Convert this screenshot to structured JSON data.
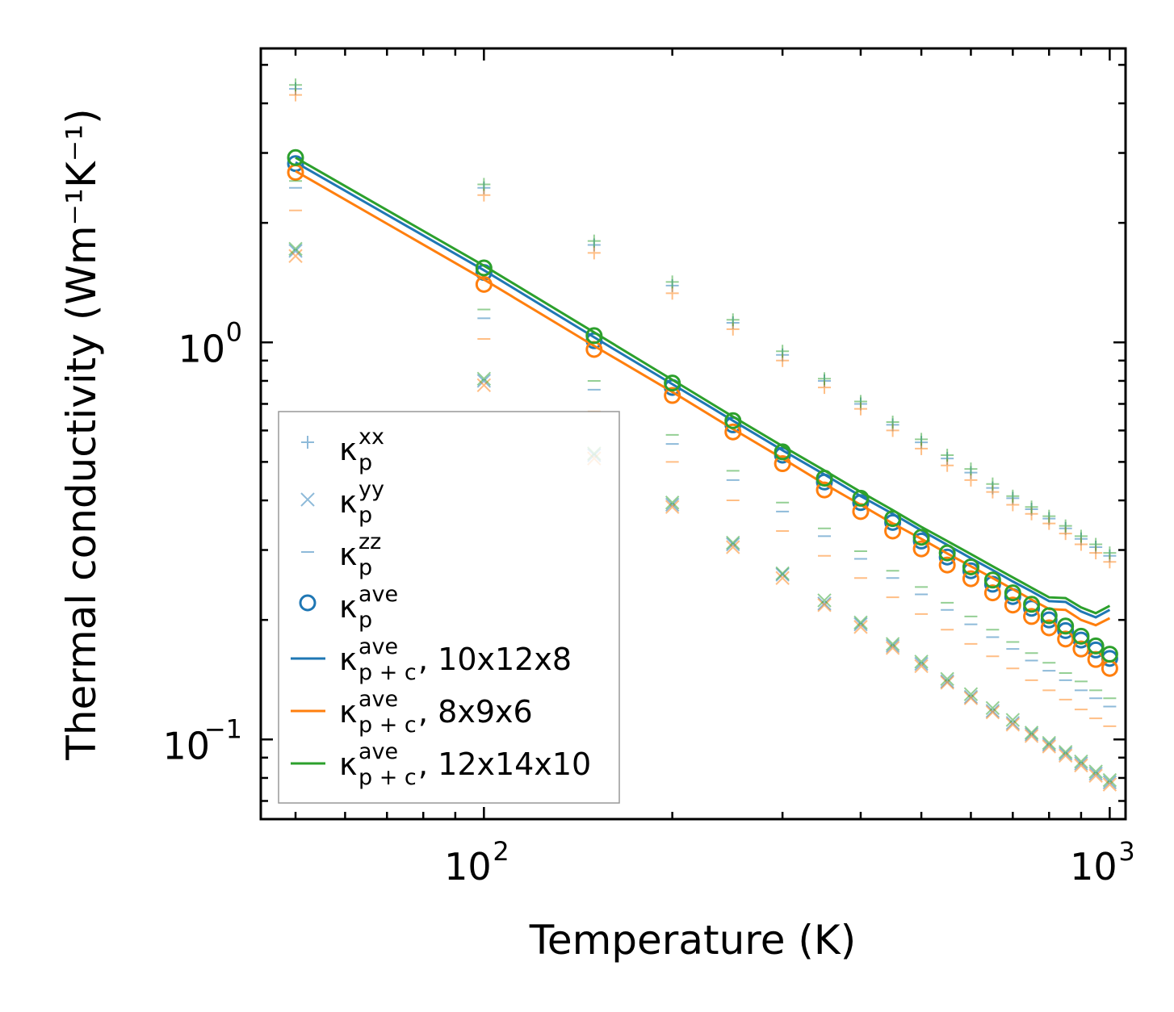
{
  "chart_data": {
    "type": "scatter",
    "xscale": "log",
    "yscale": "log",
    "xlim": [
      44,
      1060
    ],
    "ylim": [
      0.063,
      5.5
    ],
    "xlabel": "Temperature (K)",
    "ylabel": "Thermal conductivity (Wm⁻¹K⁻¹)",
    "x_ticks": [
      {
        "value": 100,
        "base": "10",
        "exp": "2"
      },
      {
        "value": 1000,
        "base": "10",
        "exp": "3"
      }
    ],
    "y_ticks": [
      {
        "value": 0.1,
        "base": "10",
        "exp": "−1"
      },
      {
        "value": 1,
        "base": "10",
        "exp": "0"
      }
    ],
    "colors": {
      "blue": "#1f77b4",
      "orange": "#ff7f0e",
      "green": "#2ca02c"
    },
    "temperatures": [
      50,
      100,
      150,
      200,
      250,
      300,
      350,
      400,
      450,
      500,
      550,
      600,
      650,
      700,
      750,
      800,
      850,
      900,
      950,
      1000
    ],
    "legend": {
      "position": "lower-left",
      "entries": [
        {
          "marker": "plus",
          "base": "κ",
          "sub": "p",
          "sup": "xx",
          "suffix": ""
        },
        {
          "marker": "x",
          "base": "κ",
          "sub": "p",
          "sup": "yy",
          "suffix": ""
        },
        {
          "marker": "dash",
          "base": "κ",
          "sub": "p",
          "sup": "zz",
          "suffix": ""
        },
        {
          "marker": "circle",
          "base": "κ",
          "sub": "p",
          "sup": "ave",
          "suffix": ""
        },
        {
          "marker": "line",
          "color": "blue",
          "base": "κ",
          "sub": "p + c",
          "sup": "ave",
          "suffix": ", 10x12x8"
        },
        {
          "marker": "line",
          "color": "orange",
          "base": "κ",
          "sub": "p + c",
          "sup": "ave",
          "suffix": ", 8x9x6"
        },
        {
          "marker": "line",
          "color": "green",
          "base": "κ",
          "sub": "p + c",
          "sup": "ave",
          "suffix": ", 12x14x10"
        }
      ]
    },
    "series": [
      {
        "name": "10x12x8",
        "color": "blue",
        "kxx": [
          4.35,
          2.45,
          1.76,
          1.39,
          1.12,
          0.93,
          0.8,
          0.7,
          0.62,
          0.56,
          0.51,
          0.47,
          0.43,
          0.405,
          0.38,
          0.36,
          0.34,
          0.32,
          0.305,
          0.29
        ],
        "kyy": [
          1.7,
          0.8,
          0.52,
          0.39,
          0.31,
          0.26,
          0.22,
          0.195,
          0.172,
          0.155,
          0.14,
          0.128,
          0.118,
          0.11,
          0.103,
          0.097,
          0.092,
          0.087,
          0.082,
          0.078
        ],
        "kzz": [
          2.45,
          1.15,
          0.76,
          0.555,
          0.45,
          0.375,
          0.325,
          0.285,
          0.255,
          0.232,
          0.212,
          0.195,
          0.181,
          0.169,
          0.158,
          0.149,
          0.141,
          0.133,
          0.127,
          0.121
        ],
        "kave": [
          2.82,
          1.5,
          1.01,
          0.77,
          0.62,
          0.52,
          0.445,
          0.395,
          0.352,
          0.316,
          0.288,
          0.266,
          0.246,
          0.229,
          0.214,
          0.2,
          0.188,
          0.178,
          0.168,
          0.16
        ],
        "kpc": [
          2.84,
          1.52,
          1.03,
          0.785,
          0.635,
          0.535,
          0.465,
          0.41,
          0.37,
          0.336,
          0.309,
          0.286,
          0.267,
          0.25,
          0.236,
          0.223,
          0.222,
          0.21,
          0.203,
          0.212
        ]
      },
      {
        "name": "8x9x6",
        "color": "orange",
        "kxx": [
          4.2,
          2.35,
          1.68,
          1.33,
          1.08,
          0.9,
          0.77,
          0.68,
          0.6,
          0.54,
          0.49,
          0.45,
          0.42,
          0.39,
          0.37,
          0.35,
          0.33,
          0.31,
          0.295,
          0.28
        ],
        "kyy": [
          1.65,
          0.78,
          0.51,
          0.385,
          0.305,
          0.255,
          0.218,
          0.192,
          0.17,
          0.153,
          0.139,
          0.127,
          0.117,
          0.109,
          0.102,
          0.096,
          0.091,
          0.086,
          0.081,
          0.077
        ],
        "kzz": [
          2.15,
          1.02,
          0.67,
          0.5,
          0.4,
          0.335,
          0.29,
          0.255,
          0.228,
          0.207,
          0.189,
          0.174,
          0.162,
          0.151,
          0.141,
          0.133,
          0.126,
          0.119,
          0.113,
          0.108
        ],
        "kave": [
          2.68,
          1.4,
          0.96,
          0.735,
          0.595,
          0.495,
          0.425,
          0.375,
          0.335,
          0.302,
          0.275,
          0.254,
          0.234,
          0.218,
          0.204,
          0.191,
          0.179,
          0.169,
          0.159,
          0.151
        ],
        "kpc": [
          2.7,
          1.44,
          0.98,
          0.75,
          0.605,
          0.51,
          0.44,
          0.39,
          0.35,
          0.32,
          0.294,
          0.273,
          0.255,
          0.239,
          0.225,
          0.213,
          0.212,
          0.2,
          0.194,
          0.202
        ]
      },
      {
        "name": "12x14x10",
        "color": "green",
        "kxx": [
          4.45,
          2.5,
          1.8,
          1.42,
          1.14,
          0.95,
          0.81,
          0.71,
          0.63,
          0.57,
          0.52,
          0.48,
          0.44,
          0.41,
          0.385,
          0.365,
          0.345,
          0.325,
          0.31,
          0.295
        ],
        "kyy": [
          1.72,
          0.81,
          0.525,
          0.395,
          0.313,
          0.262,
          0.224,
          0.197,
          0.174,
          0.157,
          0.142,
          0.13,
          0.12,
          0.112,
          0.104,
          0.098,
          0.093,
          0.088,
          0.083,
          0.079
        ],
        "kzz": [
          2.55,
          1.21,
          0.8,
          0.585,
          0.475,
          0.395,
          0.34,
          0.298,
          0.266,
          0.242,
          0.221,
          0.204,
          0.189,
          0.176,
          0.165,
          0.156,
          0.147,
          0.14,
          0.133,
          0.127
        ],
        "kave": [
          2.92,
          1.54,
          1.04,
          0.79,
          0.635,
          0.53,
          0.455,
          0.405,
          0.36,
          0.323,
          0.295,
          0.272,
          0.252,
          0.234,
          0.219,
          0.205,
          0.193,
          0.182,
          0.172,
          0.164
        ],
        "kpc": [
          2.92,
          1.56,
          1.06,
          0.805,
          0.65,
          0.548,
          0.476,
          0.42,
          0.378,
          0.343,
          0.316,
          0.293,
          0.273,
          0.256,
          0.241,
          0.228,
          0.227,
          0.215,
          0.208,
          0.217
        ]
      }
    ]
  }
}
